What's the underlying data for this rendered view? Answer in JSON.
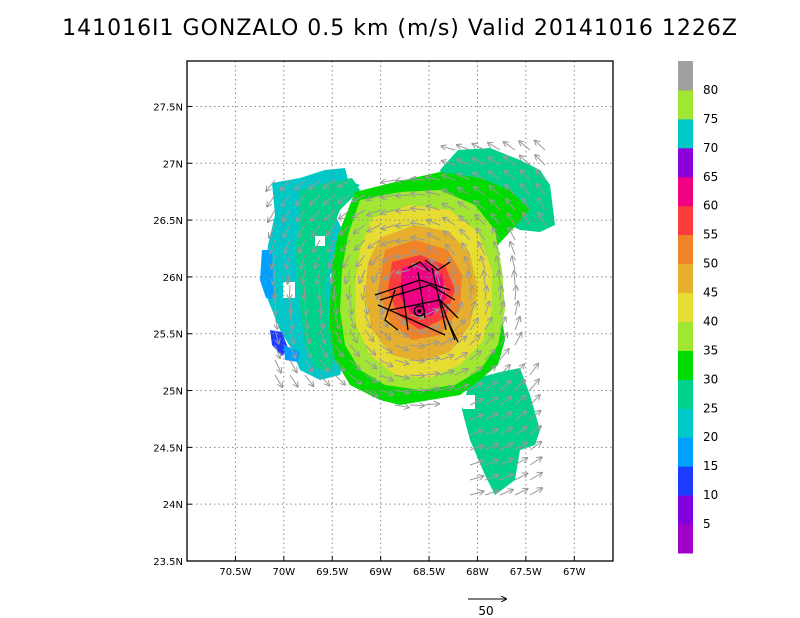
{
  "title": "141016I1 GONZALO 0.5 km (m/s) Valid 20141016 1226Z",
  "map": {
    "lon_labels": [
      "70.5W",
      "70W",
      "69.5W",
      "69W",
      "68.5W",
      "68W",
      "67.5W",
      "67W"
    ],
    "lat_labels": [
      "23.5N",
      "24N",
      "24.5N",
      "25N",
      "25.5N",
      "26N",
      "26.5N",
      "27N",
      "27.5N"
    ],
    "lon_values": [
      -70.5,
      -70.0,
      -69.5,
      -69.0,
      -68.5,
      -68.0,
      -67.5,
      -67.0
    ],
    "lat_values": [
      23.5,
      24.0,
      24.5,
      25.0,
      25.5,
      26.0,
      26.5,
      27.0,
      27.5
    ],
    "lon_range": [
      -71.0,
      -66.6
    ],
    "lat_range": [
      23.5,
      27.9
    ],
    "grid": "dotted",
    "storm_center": {
      "lon": -68.6,
      "lat": 25.7
    },
    "reference_vector_label": "50"
  },
  "colorbar": {
    "labels": [
      "5",
      "10",
      "15",
      "20",
      "25",
      "30",
      "35",
      "40",
      "45",
      "50",
      "55",
      "60",
      "65",
      "70",
      "75",
      "80"
    ],
    "colors": [
      "#a000c8",
      "#8200dc",
      "#1e3cff",
      "#00a0ff",
      "#00c8c8",
      "#00d28c",
      "#00dc00",
      "#a0e632",
      "#e6dc32",
      "#e6af2d",
      "#f08228",
      "#fa3c3c",
      "#f00082",
      "#8c00dc",
      "#00c8c8",
      "#a0e632",
      "#a0a0a0"
    ]
  }
}
